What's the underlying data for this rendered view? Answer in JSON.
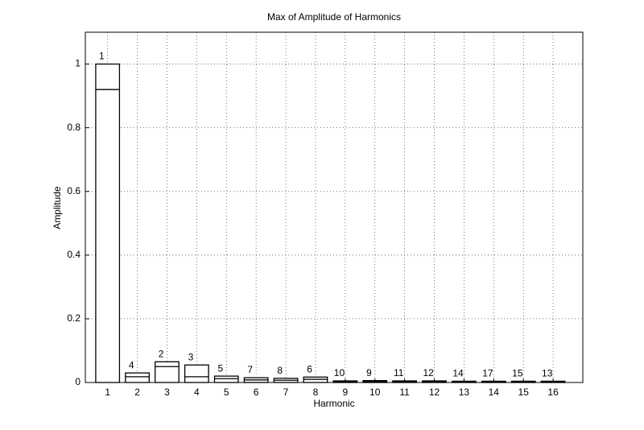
{
  "chart_data": {
    "type": "bar",
    "title": "Max of Amplitude of Harmonics",
    "x_label": "Harmonic",
    "y_label": "Amplitude",
    "x": [
      1,
      2,
      3,
      4,
      5,
      6,
      7,
      8,
      9,
      10,
      11,
      12,
      13,
      14,
      15,
      16
    ],
    "series": [
      {
        "values": [
          1.0,
          0.03,
          0.065,
          0.055,
          0.02,
          0.015,
          0.013,
          0.017,
          0.005,
          0.006,
          0.005,
          0.005,
          0.004,
          0.004,
          0.004,
          0.004
        ]
      },
      {
        "values": [
          0.92,
          0.018,
          0.05,
          0.018,
          0.012,
          0.008,
          0.007,
          0.01,
          0.003,
          0.003,
          0.003,
          0.003,
          0.002,
          0.002,
          0.002,
          0.002
        ]
      }
    ],
    "bar_labels": [
      "1",
      "4",
      "2",
      "3",
      "5",
      "7",
      "8",
      "6",
      "10",
      "9",
      "11",
      "12",
      "14",
      "17",
      "15",
      "13"
    ],
    "xlim": [
      0.25,
      17
    ],
    "ylim": [
      0,
      1.1
    ],
    "xticks": [
      1,
      2,
      3,
      4,
      5,
      6,
      7,
      8,
      9,
      10,
      11,
      12,
      13,
      14,
      15,
      16
    ],
    "yticks": [
      0,
      0.2,
      0.4,
      0.6,
      0.8,
      1
    ],
    "grid": true,
    "color": "#000000"
  }
}
